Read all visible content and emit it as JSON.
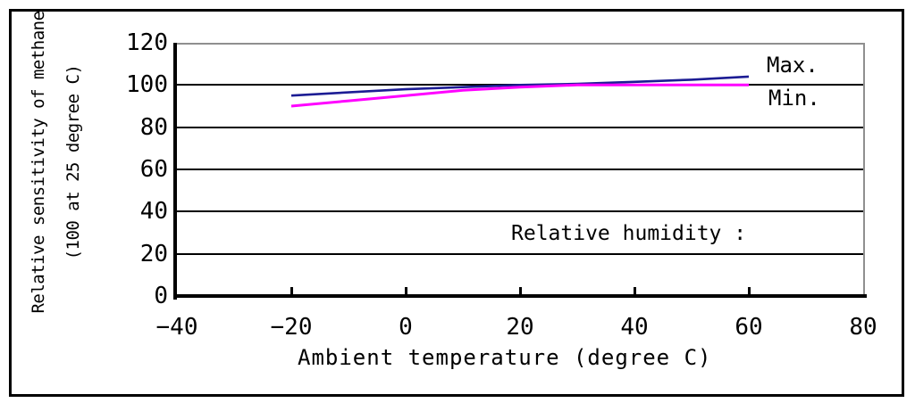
{
  "chart_data": {
    "type": "line",
    "title": "",
    "xlabel": "Ambient temperature (degree C)",
    "ylabel_line1": "Relative sensitivity of methane",
    "ylabel_line2": "(100 at 25 degree C)",
    "annotation": "Relative humidity :",
    "x": [
      -20,
      -10,
      0,
      10,
      20,
      30,
      40,
      50,
      60
    ],
    "series": [
      {
        "name": "Max.",
        "color": "#1c1c94",
        "width": 2.6,
        "values": [
          95,
          96.5,
          98,
          99,
          100,
          100.5,
          101.5,
          102.5,
          104
        ]
      },
      {
        "name": "Min.",
        "color": "#ff00ff",
        "width": 3,
        "values": [
          90,
          92.5,
          95,
          97.5,
          99,
          100,
          100,
          100,
          100
        ]
      }
    ],
    "xlim": [
      -40,
      80
    ],
    "ylim": [
      0,
      120
    ],
    "x_ticks": [
      "−40",
      "−20",
      "0",
      "20",
      "40",
      "60",
      "80"
    ],
    "x_tick_values": [
      -40,
      -20,
      0,
      20,
      40,
      60,
      80
    ],
    "x_tickmark_values": [
      -20,
      0,
      20,
      40,
      60
    ],
    "y_ticks": [
      "120",
      "100",
      "80",
      "60",
      "40",
      "20",
      "0"
    ],
    "y_tick_values": [
      120,
      100,
      80,
      60,
      40,
      20,
      0
    ],
    "gridline_values": [
      100,
      80,
      60,
      40,
      20
    ],
    "grid": "horizontal-black",
    "legend_position": "inside-top-right",
    "colors": {
      "grid": "#000000",
      "plot_border": "#8f8f8f",
      "frame": "#000000",
      "background": "#ffffff"
    }
  }
}
